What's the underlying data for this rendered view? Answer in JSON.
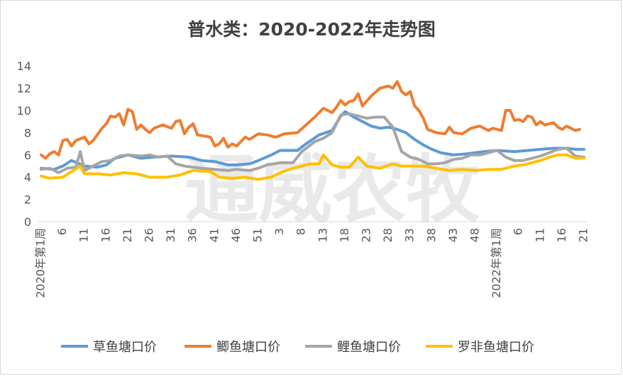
{
  "chart_data": {
    "type": "line",
    "title": "普水类：2020-2022年走势图",
    "watermark": "通威农牧",
    "ylim": [
      0,
      14
    ],
    "yticks": [
      0,
      2,
      4,
      6,
      8,
      10,
      12,
      14
    ],
    "grid": false,
    "legend_position": "bottom",
    "x_year_labels": [
      {
        "index": 1,
        "label": "2020年第1周"
      },
      {
        "index": 106,
        "label": "2022年第1周"
      }
    ],
    "x_ticks": [
      {
        "index": 6,
        "label": "6"
      },
      {
        "index": 11,
        "label": "11"
      },
      {
        "index": 16,
        "label": "16"
      },
      {
        "index": 21,
        "label": "21"
      },
      {
        "index": 26,
        "label": "26"
      },
      {
        "index": 31,
        "label": "31"
      },
      {
        "index": 36,
        "label": "36"
      },
      {
        "index": 41,
        "label": "41"
      },
      {
        "index": 46,
        "label": "46"
      },
      {
        "index": 51,
        "label": "51"
      },
      {
        "index": 56,
        "label": "3"
      },
      {
        "index": 61,
        "label": "8"
      },
      {
        "index": 66,
        "label": "13"
      },
      {
        "index": 71,
        "label": "18"
      },
      {
        "index": 76,
        "label": "23"
      },
      {
        "index": 81,
        "label": "28"
      },
      {
        "index": 86,
        "label": "33"
      },
      {
        "index": 91,
        "label": "38"
      },
      {
        "index": 96,
        "label": "43"
      },
      {
        "index": 101,
        "label": "48"
      },
      {
        "index": 111,
        "label": "6"
      },
      {
        "index": 116,
        "label": "11"
      },
      {
        "index": 121,
        "label": "16"
      },
      {
        "index": 126,
        "label": "21"
      }
    ],
    "series": [
      {
        "name": "草鱼塘口价",
        "color": "#5b9bd5",
        "points": [
          [
            1,
            4.8
          ],
          [
            4,
            4.7
          ],
          [
            6,
            5.0
          ],
          [
            8,
            5.5
          ],
          [
            11,
            5.0
          ],
          [
            14,
            4.9
          ],
          [
            16,
            5.1
          ],
          [
            18,
            5.7
          ],
          [
            21,
            6.0
          ],
          [
            24,
            5.7
          ],
          [
            27,
            5.8
          ],
          [
            31,
            5.9
          ],
          [
            35,
            5.8
          ],
          [
            38,
            5.5
          ],
          [
            41,
            5.4
          ],
          [
            44,
            5.1
          ],
          [
            46,
            5.1
          ],
          [
            49,
            5.2
          ],
          [
            51,
            5.5
          ],
          [
            54,
            6.0
          ],
          [
            56,
            6.4
          ],
          [
            60,
            6.4
          ],
          [
            62,
            7.0
          ],
          [
            65,
            7.8
          ],
          [
            68,
            8.2
          ],
          [
            70,
            9.5
          ],
          [
            71,
            9.9
          ],
          [
            73,
            9.4
          ],
          [
            75,
            9.0
          ],
          [
            77,
            8.6
          ],
          [
            79,
            8.4
          ],
          [
            81,
            8.5
          ],
          [
            83,
            8.3
          ],
          [
            85,
            8.0
          ],
          [
            87,
            7.4
          ],
          [
            89,
            6.9
          ],
          [
            91,
            6.5
          ],
          [
            93,
            6.2
          ],
          [
            96,
            6.0
          ],
          [
            99,
            6.1
          ],
          [
            103,
            6.3
          ],
          [
            106,
            6.4
          ],
          [
            110,
            6.3
          ],
          [
            113,
            6.4
          ],
          [
            116,
            6.5
          ],
          [
            119,
            6.6
          ],
          [
            122,
            6.6
          ],
          [
            124,
            6.5
          ],
          [
            126,
            6.5
          ]
        ]
      },
      {
        "name": "鲫鱼塘口价",
        "color": "#ed7d31",
        "points": [
          [
            1,
            6.0
          ],
          [
            2,
            5.7
          ],
          [
            3,
            6.1
          ],
          [
            4,
            6.3
          ],
          [
            5,
            6.0
          ],
          [
            6,
            7.3
          ],
          [
            7,
            7.4
          ],
          [
            8,
            6.8
          ],
          [
            9,
            7.3
          ],
          [
            11,
            7.6
          ],
          [
            12,
            7.0
          ],
          [
            13,
            7.3
          ],
          [
            15,
            8.4
          ],
          [
            16,
            8.8
          ],
          [
            17,
            9.5
          ],
          [
            18,
            9.4
          ],
          [
            19,
            9.7
          ],
          [
            20,
            8.7
          ],
          [
            21,
            10.1
          ],
          [
            22,
            9.9
          ],
          [
            23,
            8.3
          ],
          [
            24,
            8.7
          ],
          [
            25,
            8.3
          ],
          [
            26,
            8.0
          ],
          [
            27,
            8.4
          ],
          [
            29,
            8.7
          ],
          [
            31,
            8.4
          ],
          [
            32,
            9.0
          ],
          [
            33,
            9.1
          ],
          [
            34,
            7.9
          ],
          [
            35,
            8.5
          ],
          [
            36,
            8.8
          ],
          [
            37,
            7.8
          ],
          [
            40,
            7.6
          ],
          [
            41,
            6.8
          ],
          [
            42,
            7.0
          ],
          [
            43,
            7.5
          ],
          [
            44,
            6.7
          ],
          [
            45,
            7.0
          ],
          [
            46,
            6.8
          ],
          [
            47,
            7.2
          ],
          [
            48,
            7.6
          ],
          [
            49,
            7.4
          ],
          [
            51,
            7.9
          ],
          [
            53,
            7.8
          ],
          [
            55,
            7.6
          ],
          [
            57,
            7.9
          ],
          [
            60,
            8.0
          ],
          [
            62,
            8.7
          ],
          [
            64,
            9.4
          ],
          [
            66,
            10.2
          ],
          [
            68,
            9.8
          ],
          [
            69,
            10.3
          ],
          [
            70,
            10.9
          ],
          [
            71,
            10.5
          ],
          [
            72,
            10.8
          ],
          [
            73,
            10.9
          ],
          [
            74,
            11.5
          ],
          [
            75,
            10.4
          ],
          [
            77,
            11.3
          ],
          [
            79,
            12.0
          ],
          [
            81,
            12.2
          ],
          [
            82,
            12.0
          ],
          [
            83,
            12.6
          ],
          [
            84,
            11.7
          ],
          [
            85,
            11.4
          ],
          [
            86,
            11.7
          ],
          [
            87,
            10.4
          ],
          [
            88,
            10.0
          ],
          [
            89,
            9.3
          ],
          [
            90,
            8.3
          ],
          [
            92,
            8.0
          ],
          [
            94,
            7.9
          ],
          [
            95,
            8.5
          ],
          [
            96,
            8.0
          ],
          [
            98,
            7.9
          ],
          [
            100,
            8.4
          ],
          [
            102,
            8.6
          ],
          [
            104,
            8.2
          ],
          [
            105,
            8.4
          ],
          [
            107,
            8.2
          ],
          [
            108,
            10.0
          ],
          [
            109,
            10.0
          ],
          [
            110,
            9.1
          ],
          [
            111,
            9.2
          ],
          [
            112,
            9.0
          ],
          [
            113,
            9.5
          ],
          [
            114,
            9.4
          ],
          [
            115,
            8.7
          ],
          [
            116,
            9.0
          ],
          [
            117,
            8.7
          ],
          [
            118,
            8.8
          ],
          [
            119,
            8.9
          ],
          [
            120,
            8.5
          ],
          [
            121,
            8.3
          ],
          [
            122,
            8.6
          ],
          [
            124,
            8.2
          ],
          [
            125,
            8.3
          ]
        ]
      },
      {
        "name": "鲤鱼塘口价",
        "color": "#a5a5a5",
        "points": [
          [
            1,
            4.7
          ],
          [
            3,
            4.8
          ],
          [
            5,
            4.4
          ],
          [
            7,
            4.8
          ],
          [
            9,
            4.9
          ],
          [
            10,
            6.3
          ],
          [
            11,
            4.6
          ],
          [
            13,
            5.0
          ],
          [
            15,
            5.4
          ],
          [
            17,
            5.5
          ],
          [
            19,
            5.9
          ],
          [
            21,
            6.0
          ],
          [
            24,
            5.9
          ],
          [
            26,
            6.0
          ],
          [
            28,
            5.8
          ],
          [
            30,
            5.9
          ],
          [
            32,
            5.2
          ],
          [
            34,
            5.0
          ],
          [
            36,
            4.9
          ],
          [
            38,
            4.8
          ],
          [
            41,
            4.7
          ],
          [
            44,
            4.6
          ],
          [
            46,
            4.7
          ],
          [
            49,
            4.6
          ],
          [
            51,
            4.8
          ],
          [
            53,
            5.1
          ],
          [
            56,
            5.3
          ],
          [
            59,
            5.3
          ],
          [
            61,
            6.3
          ],
          [
            64,
            7.2
          ],
          [
            66,
            7.5
          ],
          [
            68,
            8.0
          ],
          [
            70,
            9.6
          ],
          [
            72,
            9.7
          ],
          [
            74,
            9.5
          ],
          [
            76,
            9.3
          ],
          [
            78,
            9.4
          ],
          [
            80,
            9.4
          ],
          [
            82,
            8.5
          ],
          [
            84,
            6.3
          ],
          [
            86,
            5.8
          ],
          [
            88,
            5.6
          ],
          [
            90,
            5.2
          ],
          [
            92,
            5.2
          ],
          [
            94,
            5.3
          ],
          [
            96,
            5.6
          ],
          [
            98,
            5.7
          ],
          [
            100,
            6.0
          ],
          [
            102,
            6.0
          ],
          [
            104,
            6.2
          ],
          [
            106,
            6.4
          ],
          [
            108,
            5.8
          ],
          [
            110,
            5.5
          ],
          [
            112,
            5.5
          ],
          [
            114,
            5.7
          ],
          [
            116,
            5.9
          ],
          [
            118,
            6.2
          ],
          [
            120,
            6.5
          ],
          [
            122,
            6.6
          ],
          [
            124,
            5.9
          ],
          [
            126,
            5.8
          ]
        ]
      },
      {
        "name": "罗非鱼塘口价",
        "color": "#ffc000",
        "points": [
          [
            1,
            4.1
          ],
          [
            3,
            3.9
          ],
          [
            6,
            4.0
          ],
          [
            8,
            4.5
          ],
          [
            10,
            5.0
          ],
          [
            11,
            4.3
          ],
          [
            14,
            4.3
          ],
          [
            17,
            4.2
          ],
          [
            20,
            4.4
          ],
          [
            23,
            4.3
          ],
          [
            26,
            4.0
          ],
          [
            30,
            4.0
          ],
          [
            33,
            4.2
          ],
          [
            36,
            4.6
          ],
          [
            40,
            4.5
          ],
          [
            42,
            4.0
          ],
          [
            45,
            3.9
          ],
          [
            48,
            4.0
          ],
          [
            51,
            3.8
          ],
          [
            54,
            4.0
          ],
          [
            56,
            4.4
          ],
          [
            59,
            4.8
          ],
          [
            61,
            5.0
          ],
          [
            63,
            5.2
          ],
          [
            65,
            5.2
          ],
          [
            66,
            6.0
          ],
          [
            68,
            5.1
          ],
          [
            70,
            4.9
          ],
          [
            72,
            4.9
          ],
          [
            74,
            5.8
          ],
          [
            76,
            5.0
          ],
          [
            79,
            4.8
          ],
          [
            82,
            5.2
          ],
          [
            84,
            5.0
          ],
          [
            86,
            5.0
          ],
          [
            89,
            5.0
          ],
          [
            92,
            4.8
          ],
          [
            95,
            4.6
          ],
          [
            98,
            4.7
          ],
          [
            101,
            4.6
          ],
          [
            104,
            4.7
          ],
          [
            107,
            4.7
          ],
          [
            110,
            5.0
          ],
          [
            112,
            5.1
          ],
          [
            114,
            5.3
          ],
          [
            116,
            5.5
          ],
          [
            118,
            5.8
          ],
          [
            120,
            6.0
          ],
          [
            122,
            6.0
          ],
          [
            124,
            5.7
          ],
          [
            126,
            5.7
          ]
        ]
      }
    ]
  }
}
